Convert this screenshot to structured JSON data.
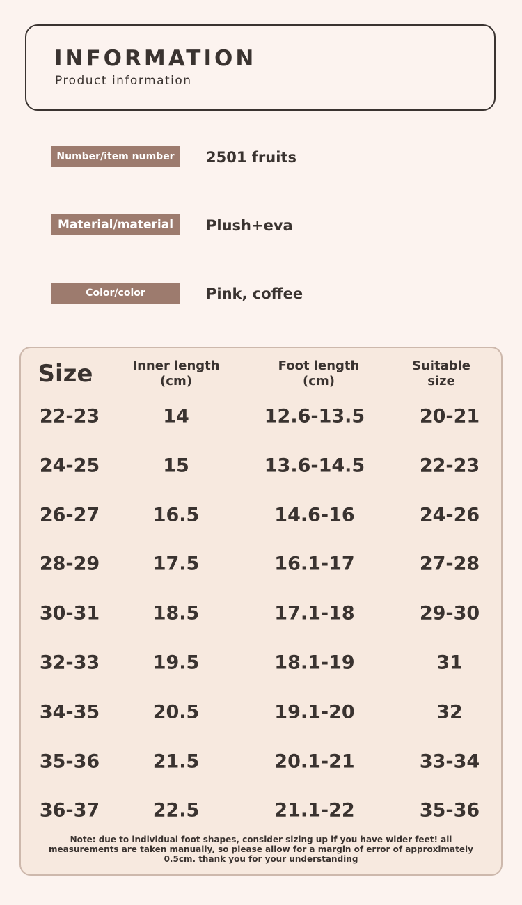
{
  "header": {
    "title": "INFORMATION",
    "subtitle": "Product information"
  },
  "info": [
    {
      "label": "Number/item number",
      "value": "2501 fruits"
    },
    {
      "label": "Material/material",
      "value": "Plush+eva"
    },
    {
      "label": "Color/color",
      "value": "Pink, coffee"
    }
  ],
  "table": {
    "headers": [
      "Size",
      "Inner length\n(cm)",
      "Foot length\n(cm)",
      "Suitable size"
    ],
    "rows": [
      [
        "22-23",
        "14",
        "12.6-13.5",
        "20-21"
      ],
      [
        "24-25",
        "15",
        "13.6-14.5",
        "22-23"
      ],
      [
        "26-27",
        "16.5",
        "14.6-16",
        "24-26"
      ],
      [
        "28-29",
        "17.5",
        "16.1-17",
        "27-28"
      ],
      [
        "30-31",
        "18.5",
        "17.1-18",
        "29-30"
      ],
      [
        "32-33",
        "19.5",
        "18.1-19",
        "31"
      ],
      [
        "34-35",
        "20.5",
        "19.1-20",
        "32"
      ],
      [
        "35-36",
        "21.5",
        "20.1-21",
        "33-34"
      ],
      [
        "36-37",
        "22.5",
        "21.1-22",
        "35-36"
      ]
    ],
    "note": "Note: due to individual foot shapes, consider sizing up if you have wider feet! all measurements are taken manually, so please allow for a margin of error of approximately 0.5cm. thank you for your understanding"
  }
}
